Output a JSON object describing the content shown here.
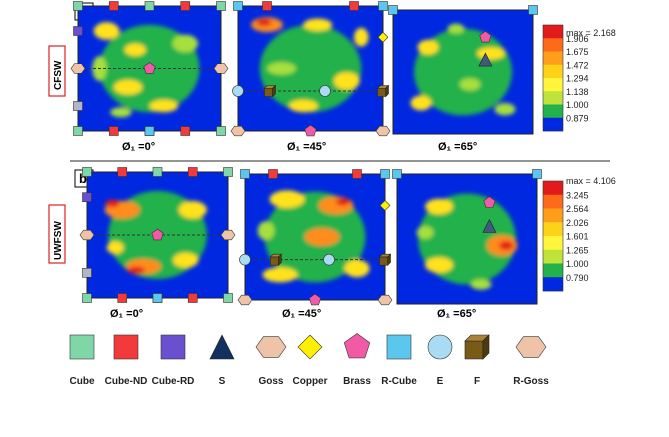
{
  "panel_a": {
    "letter": "a",
    "side_label": "CFSW",
    "angles": [
      "Ø₁ =0°",
      "Ø₁ =45°",
      "Ø₁ =65°"
    ],
    "scale": {
      "max_label": "max = 2.168",
      "levels": [
        "1.906",
        "1.675",
        "1.472",
        "1.294",
        "1.138",
        "1.000",
        "0.879"
      ],
      "colors": [
        "#e31a1c",
        "#fd6a1a",
        "#ff9e1b",
        "#ffd21a",
        "#fff53a",
        "#bfe33a",
        "#22b14c",
        "#0028e0"
      ]
    }
  },
  "panel_b": {
    "letter": "b",
    "side_label": "UWFSW",
    "angles": [
      "Ø₁ =0°",
      "Ø₁ =45°",
      "Ø₁ =65°"
    ],
    "scale": {
      "max_label": "max = 4.106",
      "levels": [
        "3.245",
        "2.564",
        "2.026",
        "1.601",
        "1.265",
        "1.000",
        "0.790"
      ],
      "colors": [
        "#e31a1c",
        "#fd6a1a",
        "#ff9e1b",
        "#ffd21a",
        "#fff53a",
        "#bfe33a",
        "#22b14c",
        "#0028e0"
      ]
    }
  },
  "legend": [
    {
      "label": "Cube",
      "shape": "square",
      "color": "#7fd7a8",
      "icon": "cube-square-icon"
    },
    {
      "label": "Cube-ND",
      "shape": "square",
      "color": "#f23a3a",
      "icon": "cube-nd-square-icon"
    },
    {
      "label": "Cube-RD",
      "shape": "square",
      "color": "#6a4fd0",
      "icon": "cube-rd-square-icon"
    },
    {
      "label": "S",
      "shape": "triangle",
      "color": "#13315e",
      "icon": "s-triangle-icon"
    },
    {
      "label": "Goss",
      "shape": "hexagon",
      "color": "#efc3a7",
      "icon": "goss-hexagon-icon"
    },
    {
      "label": "Copper",
      "shape": "diamond",
      "color": "#ffef00",
      "icon": "copper-diamond-icon"
    },
    {
      "label": "Brass",
      "shape": "pentagon",
      "color": "#f25aa7",
      "icon": "brass-pentagon-icon"
    },
    {
      "label": "R-Cube",
      "shape": "square",
      "color": "#5cc7ee",
      "icon": "r-cube-square-icon"
    },
    {
      "label": "E",
      "shape": "circle",
      "color": "#a9dcf2",
      "icon": "e-circle-icon"
    },
    {
      "label": "F",
      "shape": "cube3d",
      "color": "#7a5a17",
      "icon": "f-cube-icon"
    },
    {
      "label": "R-Goss",
      "shape": "hexagon",
      "color": "#efc3a7",
      "icon": "r-goss-hexagon-icon"
    }
  ]
}
